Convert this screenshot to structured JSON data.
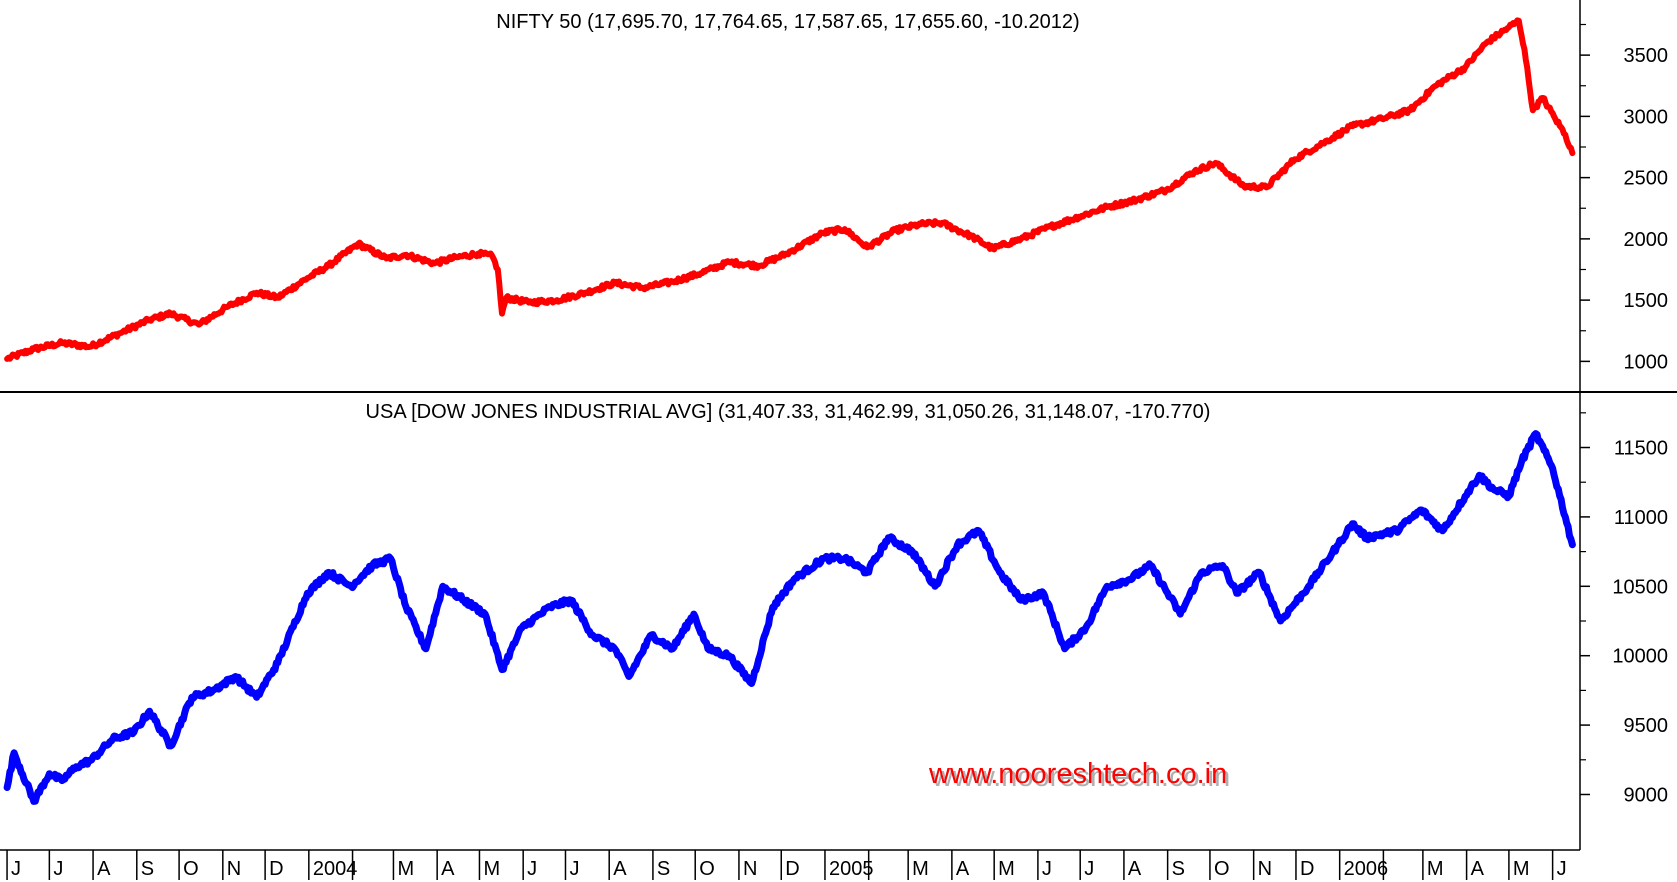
{
  "colors": {
    "nifty_line": "#ff0000",
    "dow_line": "#0000ff",
    "watermark": "#ff0000",
    "axis": "#000000",
    "background": "#ffffff"
  },
  "watermark": "www.nooreshtech.co.in",
  "chart_data": [
    {
      "type": "line",
      "title": "NIFTY 50 (17,695.70, 17,764.65, 17,587.65, 17,655.60, -10.2012)",
      "ylim": [
        750,
        3950
      ],
      "y_ticks": [
        1000,
        1500,
        2000,
        2500,
        3000,
        3500
      ],
      "y_tick_labels": [
        "1000",
        "1500",
        "2000",
        "2500",
        "3000",
        "3500"
      ],
      "grid": false,
      "series": [
        {
          "x": [
            "2003-06-01",
            "2003-06-20",
            "2003-07-10",
            "2003-07-30",
            "2003-08-20",
            "2003-09-10",
            "2003-09-25",
            "2003-10-15",
            "2003-11-05",
            "2003-11-25",
            "2003-12-10",
            "2003-12-31",
            "2004-01-15",
            "2004-02-05",
            "2004-02-25",
            "2004-03-10",
            "2004-03-30",
            "2004-04-15",
            "2004-04-30",
            "2004-05-10",
            "2004-05-14",
            "2004-05-17",
            "2004-05-20",
            "2004-06-05",
            "2004-06-25",
            "2004-07-15",
            "2004-08-05",
            "2004-08-25",
            "2004-09-15",
            "2004-10-05",
            "2004-10-25",
            "2004-11-15",
            "2004-12-05",
            "2004-12-31",
            "2005-01-15",
            "2005-01-31",
            "2005-02-20",
            "2005-03-10",
            "2005-03-25",
            "2005-04-15",
            "2005-04-30",
            "2005-05-20",
            "2005-06-10",
            "2005-06-30",
            "2005-07-20",
            "2005-08-10",
            "2005-08-31",
            "2005-09-20",
            "2005-10-05",
            "2005-10-25",
            "2005-11-10",
            "2005-11-30",
            "2005-12-20",
            "2006-01-10",
            "2006-01-31",
            "2006-02-20",
            "2006-03-10",
            "2006-03-31",
            "2006-04-15",
            "2006-04-30",
            "2006-05-08",
            "2006-05-12",
            "2006-05-18",
            "2006-05-25",
            "2006-06-02",
            "2006-06-10",
            "2006-06-15"
          ],
          "values": [
            1020,
            1100,
            1150,
            1120,
            1230,
            1340,
            1390,
            1300,
            1450,
            1560,
            1520,
            1680,
            1780,
            1960,
            1840,
            1870,
            1800,
            1850,
            1880,
            1860,
            1750,
            1390,
            1520,
            1480,
            1500,
            1560,
            1640,
            1600,
            1650,
            1720,
            1810,
            1780,
            1880,
            2050,
            2080,
            1930,
            2070,
            2120,
            2130,
            2020,
            1920,
            2000,
            2100,
            2180,
            2260,
            2320,
            2400,
            2550,
            2620,
            2430,
            2420,
            2650,
            2780,
            2920,
            2980,
            3050,
            3250,
            3400,
            3600,
            3720,
            3780,
            3550,
            3050,
            3150,
            3000,
            2850,
            2700
          ]
        }
      ]
    },
    {
      "type": "line",
      "title": "USA [DOW JONES INDUSTRIAL AVG] (31,407.33, 31,462.99, 31,050.26, 31,148.07, -170.770)",
      "ylim": [
        8600,
        11900
      ],
      "y_ticks": [
        9000,
        9500,
        10000,
        10500,
        11000,
        11500
      ],
      "y_tick_labels": [
        "9000",
        "9500",
        "10000",
        "10500",
        "11000",
        "11500"
      ],
      "grid": false,
      "series": [
        {
          "x": [
            "2003-06-01",
            "2003-06-06",
            "2003-06-20",
            "2003-07-01",
            "2003-07-10",
            "2003-07-20",
            "2003-07-31",
            "2003-08-15",
            "2003-08-30",
            "2003-09-10",
            "2003-09-25",
            "2003-10-10",
            "2003-10-25",
            "2003-11-10",
            "2003-11-25",
            "2003-12-10",
            "2003-12-31",
            "2004-01-15",
            "2004-01-31",
            "2004-02-15",
            "2004-02-28",
            "2004-03-10",
            "2004-03-24",
            "2004-04-05",
            "2004-04-20",
            "2004-05-05",
            "2004-05-17",
            "2004-05-31",
            "2004-06-20",
            "2004-07-05",
            "2004-07-20",
            "2004-08-05",
            "2004-08-15",
            "2004-08-31",
            "2004-09-15",
            "2004-09-30",
            "2004-10-10",
            "2004-10-25",
            "2004-11-10",
            "2004-11-25",
            "2004-12-10",
            "2004-12-31",
            "2005-01-15",
            "2005-01-31",
            "2005-02-15",
            "2005-03-04",
            "2005-03-20",
            "2005-04-05",
            "2005-04-20",
            "2005-05-05",
            "2005-05-20",
            "2005-06-05",
            "2005-06-20",
            "2005-07-05",
            "2005-07-20",
            "2005-08-05",
            "2005-08-20",
            "2005-09-10",
            "2005-09-25",
            "2005-10-10",
            "2005-10-20",
            "2005-11-05",
            "2005-11-20",
            "2005-12-10",
            "2005-12-31",
            "2006-01-10",
            "2006-01-20",
            "2006-02-10",
            "2006-02-28",
            "2006-03-15",
            "2006-03-31",
            "2006-04-10",
            "2006-04-20",
            "2006-05-01",
            "2006-05-10",
            "2006-05-20",
            "2006-06-01",
            "2006-06-10",
            "2006-06-15"
          ],
          "values": [
            9050,
            9300,
            8950,
            9150,
            9100,
            9200,
            9250,
            9400,
            9450,
            9600,
            9350,
            9700,
            9750,
            9850,
            9700,
            9950,
            10450,
            10600,
            10500,
            10650,
            10700,
            10350,
            10050,
            10500,
            10400,
            10300,
            9900,
            10200,
            10350,
            10400,
            10150,
            10050,
            9850,
            10150,
            10050,
            10300,
            10050,
            10000,
            9800,
            10350,
            10550,
            10700,
            10700,
            10600,
            10850,
            10750,
            10500,
            10800,
            10900,
            10600,
            10400,
            10450,
            10050,
            10200,
            10500,
            10550,
            10650,
            10300,
            10600,
            10650,
            10450,
            10600,
            10250,
            10500,
            10800,
            10950,
            10850,
            10900,
            11050,
            10900,
            11150,
            11300,
            11200,
            11150,
            11400,
            11600,
            11350,
            11000,
            10800
          ]
        }
      ]
    }
  ],
  "x_axis": {
    "ticks": [
      {
        "x": "2003-06-01",
        "label": "J"
      },
      {
        "x": "2003-07-01",
        "label": "J"
      },
      {
        "x": "2003-08-01",
        "label": "A"
      },
      {
        "x": "2003-09-01",
        "label": "S"
      },
      {
        "x": "2003-10-01",
        "label": "O"
      },
      {
        "x": "2003-11-01",
        "label": "N"
      },
      {
        "x": "2003-12-01",
        "label": "D"
      },
      {
        "x": "2004-01-01",
        "label": "2004"
      },
      {
        "x": "2004-02-01",
        "label": ""
      },
      {
        "x": "2004-03-01",
        "label": "M"
      },
      {
        "x": "2004-04-01",
        "label": "A"
      },
      {
        "x": "2004-05-01",
        "label": "M"
      },
      {
        "x": "2004-06-01",
        "label": "J"
      },
      {
        "x": "2004-07-01",
        "label": "J"
      },
      {
        "x": "2004-08-01",
        "label": "A"
      },
      {
        "x": "2004-09-01",
        "label": "S"
      },
      {
        "x": "2004-10-01",
        "label": "O"
      },
      {
        "x": "2004-11-01",
        "label": "N"
      },
      {
        "x": "2004-12-01",
        "label": "D"
      },
      {
        "x": "2005-01-01",
        "label": "2005"
      },
      {
        "x": "2005-02-01",
        "label": ""
      },
      {
        "x": "2005-03-01",
        "label": "M"
      },
      {
        "x": "2005-04-01",
        "label": "A"
      },
      {
        "x": "2005-05-01",
        "label": "M"
      },
      {
        "x": "2005-06-01",
        "label": "J"
      },
      {
        "x": "2005-07-01",
        "label": "J"
      },
      {
        "x": "2005-08-01",
        "label": "A"
      },
      {
        "x": "2005-09-01",
        "label": "S"
      },
      {
        "x": "2005-10-01",
        "label": "O"
      },
      {
        "x": "2005-11-01",
        "label": "N"
      },
      {
        "x": "2005-12-01",
        "label": "D"
      },
      {
        "x": "2006-01-01",
        "label": "2006"
      },
      {
        "x": "2006-02-01",
        "label": ""
      },
      {
        "x": "2006-03-01",
        "label": "M"
      },
      {
        "x": "2006-04-01",
        "label": "A"
      },
      {
        "x": "2006-05-01",
        "label": "M"
      },
      {
        "x": "2006-06-01",
        "label": "J"
      }
    ]
  }
}
